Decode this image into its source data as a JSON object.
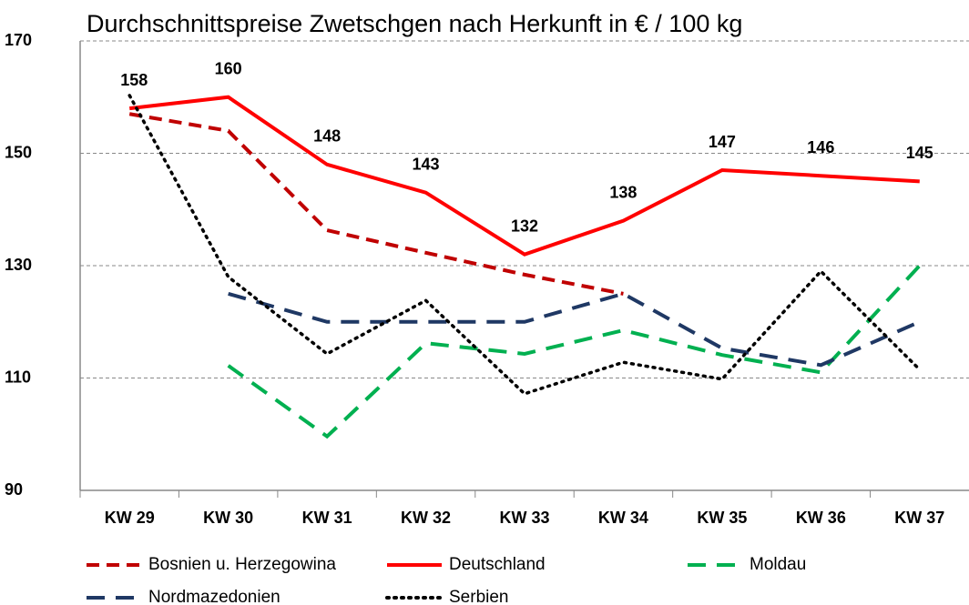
{
  "chart_data": {
    "type": "line",
    "title": "Durchschnittspreise Zwetschgen nach Herkunft in € / 100 kg",
    "categories": [
      "KW 29",
      "KW 30",
      "KW 31",
      "KW 32",
      "KW 33",
      "KW 34",
      "KW 35",
      "KW 36",
      "KW 37"
    ],
    "series": [
      {
        "name": "Bosnien u. Herzegowina",
        "color": "#c00000",
        "style": "dashed",
        "values": [
          157,
          154,
          136.3,
          132.3,
          128.4,
          125,
          null,
          null,
          null
        ]
      },
      {
        "name": "Deutschland",
        "color": "#ff0000",
        "style": "solid",
        "labels": true,
        "values": [
          158,
          160,
          148,
          143,
          132,
          138,
          147,
          146,
          145
        ]
      },
      {
        "name": "Moldau",
        "color": "#00b050",
        "style": "longdash",
        "values": [
          null,
          112.2,
          99.6,
          116.2,
          114.3,
          118.5,
          114.1,
          111,
          130
        ]
      },
      {
        "name": "Nordmazedonien",
        "color": "#1f3864",
        "style": "longdash",
        "values": [
          null,
          125,
          120,
          120,
          120,
          125,
          115.3,
          112.3,
          120
        ]
      },
      {
        "name": "Serbien",
        "color": "#000000",
        "style": "dotted",
        "values": [
          160.3,
          128,
          114.3,
          123.8,
          107.2,
          112.8,
          109.8,
          129,
          111.5
        ]
      }
    ],
    "ylim": [
      90,
      170
    ],
    "yticks": [
      90,
      110,
      130,
      150,
      170
    ],
    "grid": true,
    "legend": "bottom"
  }
}
